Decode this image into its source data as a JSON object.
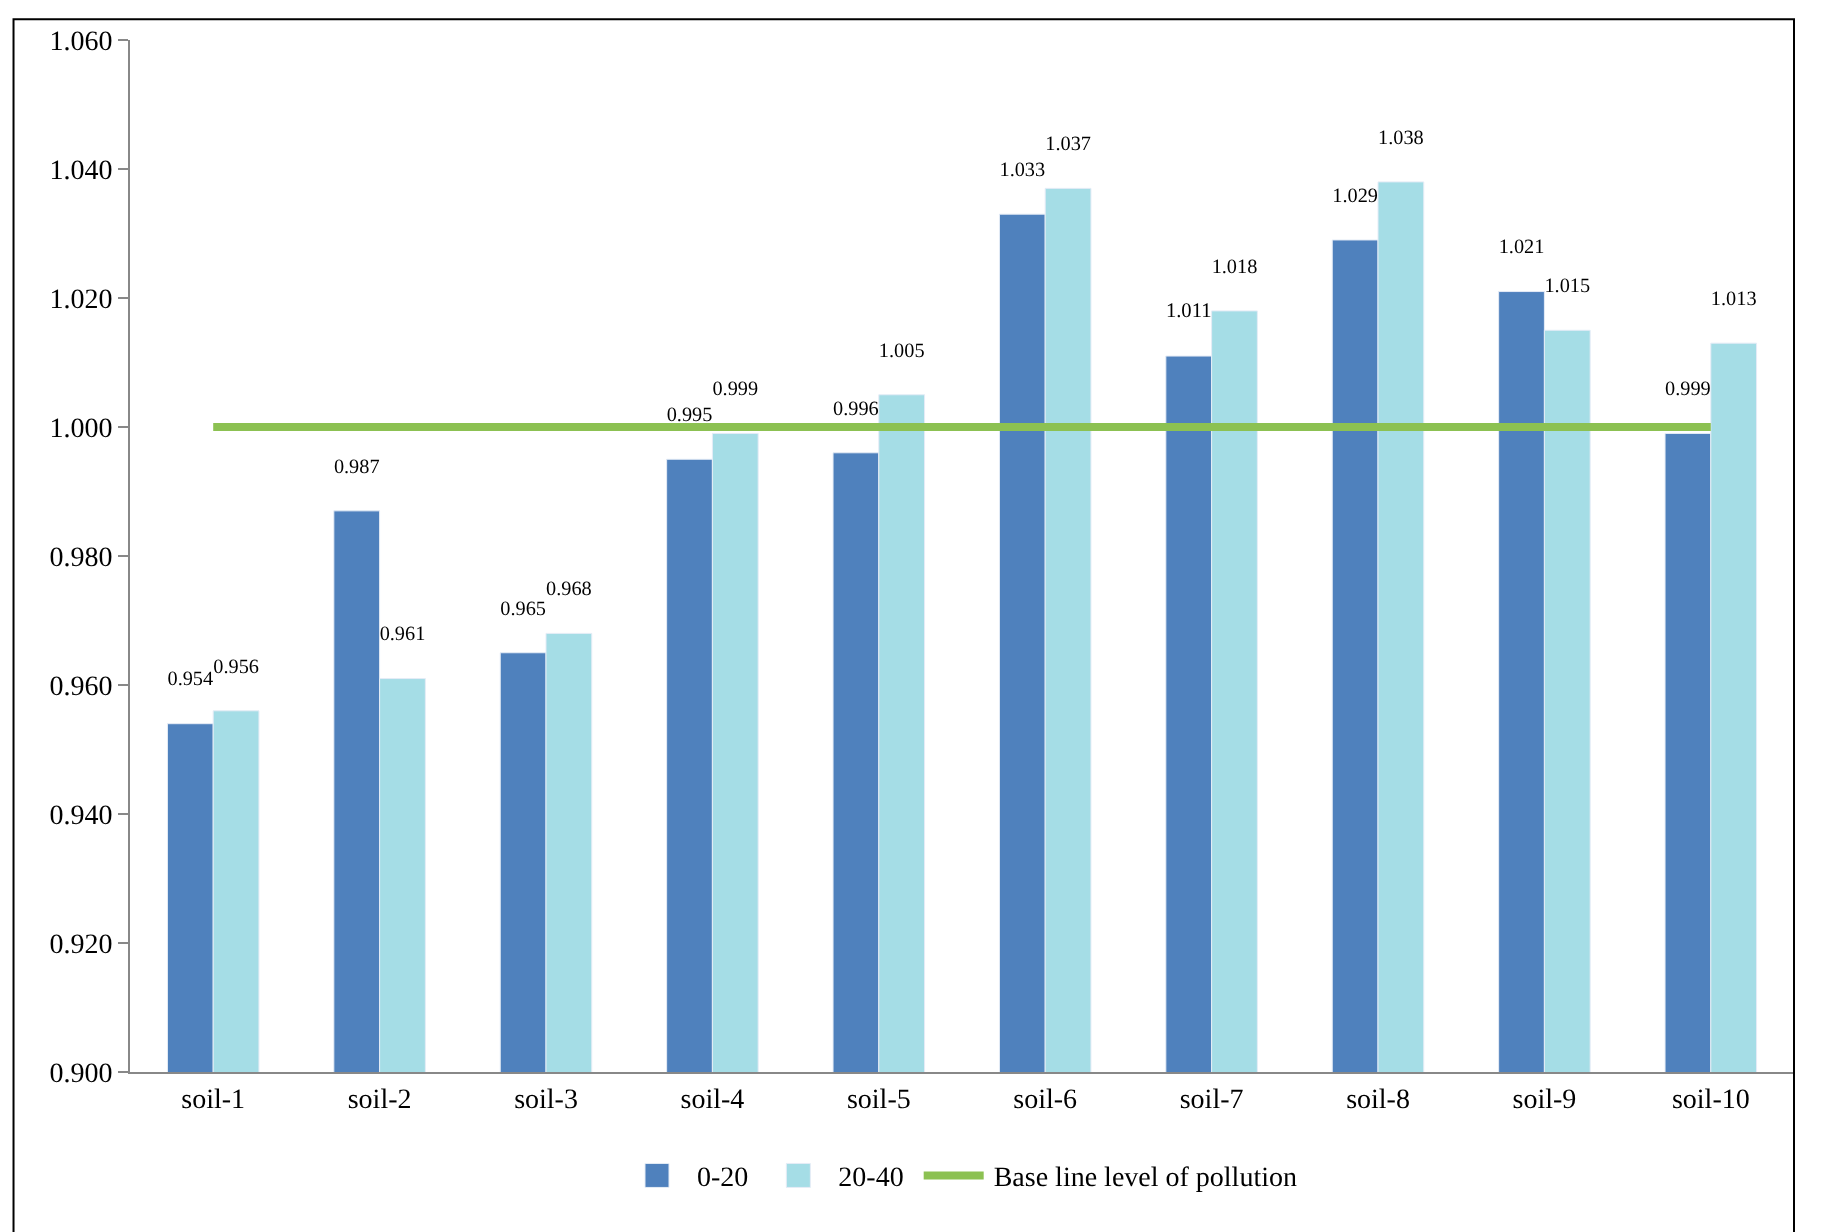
{
  "chart_data": {
    "type": "bar",
    "categories": [
      "soil-1",
      "soil-2",
      "soil-3",
      "soil-4",
      "soil-5",
      "soil-6",
      "soil-7",
      "soil-8",
      "soil-9",
      "soil-10"
    ],
    "series": [
      {
        "name": "0-20",
        "color": "#4f81bd",
        "values": [
          0.954,
          0.987,
          0.965,
          0.995,
          0.996,
          1.033,
          1.011,
          1.029,
          1.021,
          0.999
        ]
      },
      {
        "name": "20-40",
        "color": "#a5dde6",
        "values": [
          0.956,
          0.961,
          0.968,
          0.999,
          1.005,
          1.037,
          1.018,
          1.038,
          1.015,
          1.013
        ]
      }
    ],
    "ylim": [
      0.9,
      1.06
    ],
    "yticks": [
      {
        "value": 0.9,
        "label": "0.900"
      },
      {
        "value": 0.92,
        "label": "0.920"
      },
      {
        "value": 0.94,
        "label": "0.940"
      },
      {
        "value": 0.96,
        "label": "0.960"
      },
      {
        "value": 0.98,
        "label": "0.980"
      },
      {
        "value": 1.0,
        "label": "1.000"
      },
      {
        "value": 1.02,
        "label": "1.020"
      },
      {
        "value": 1.04,
        "label": "1.040"
      },
      {
        "value": 1.06,
        "label": "1.060"
      }
    ],
    "ref_lines": [
      {
        "axis": "y",
        "value": 1.0,
        "label": "Base line level of pollution",
        "color": "#8cc152"
      }
    ],
    "data_labels": true,
    "legend": "bottom"
  }
}
